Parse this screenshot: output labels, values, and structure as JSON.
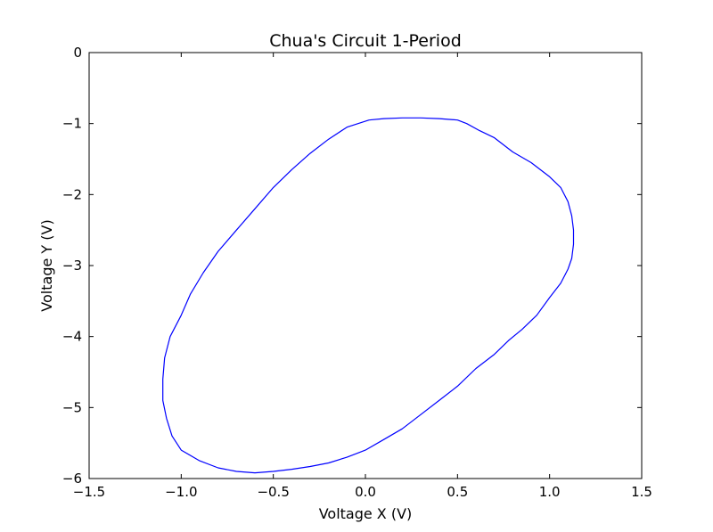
{
  "chart_data": {
    "type": "line",
    "title": "Chua's Circuit 1-Period",
    "xlabel": "Voltage X (V)",
    "ylabel": "Voltage Y (V)",
    "xlim": [
      -1.5,
      1.5
    ],
    "ylim": [
      -6,
      0
    ],
    "x_ticks": [
      -1.5,
      -1.0,
      -0.5,
      0.0,
      0.5,
      1.0,
      1.5
    ],
    "x_tick_labels": [
      "−1.5",
      "−1.0",
      "−0.5",
      "0.0",
      "0.5",
      "1.0",
      "1.5"
    ],
    "y_ticks": [
      0,
      -1,
      -2,
      -3,
      -4,
      -5,
      -6
    ],
    "y_tick_labels": [
      "0",
      "−1",
      "−2",
      "−3",
      "−4",
      "−5",
      "−6"
    ],
    "grid": false,
    "line_color": "#0000ff",
    "series": [
      {
        "x": [
          0.02,
          0.1,
          0.2,
          0.3,
          0.4,
          0.5,
          0.55,
          0.62,
          0.7,
          0.8,
          0.9,
          1.0,
          1.06,
          1.1,
          1.12,
          1.13,
          1.13,
          1.12,
          1.1,
          1.06,
          1.0,
          0.93,
          0.85,
          0.78,
          0.7,
          0.6,
          0.5,
          0.4,
          0.3,
          0.2,
          0.1,
          0.0,
          -0.1,
          -0.2,
          -0.3,
          -0.4,
          -0.5,
          -0.6,
          -0.7,
          -0.8,
          -0.9,
          -1.0,
          -1.05,
          -1.08,
          -1.1,
          -1.1,
          -1.09,
          -1.06,
          -1.0,
          -0.95,
          -0.88,
          -0.8,
          -0.7,
          -0.6,
          -0.5,
          -0.4,
          -0.3,
          -0.2,
          -0.1,
          0.02
        ],
        "y": [
          -0.95,
          -0.93,
          -0.92,
          -0.92,
          -0.93,
          -0.95,
          -1.0,
          -1.1,
          -1.2,
          -1.4,
          -1.55,
          -1.75,
          -1.9,
          -2.1,
          -2.3,
          -2.5,
          -2.7,
          -2.9,
          -3.05,
          -3.25,
          -3.45,
          -3.7,
          -3.9,
          -4.05,
          -4.25,
          -4.45,
          -4.7,
          -4.9,
          -5.1,
          -5.3,
          -5.45,
          -5.6,
          -5.7,
          -5.78,
          -5.83,
          -5.87,
          -5.9,
          -5.92,
          -5.9,
          -5.85,
          -5.75,
          -5.6,
          -5.4,
          -5.15,
          -4.9,
          -4.6,
          -4.3,
          -4.0,
          -3.7,
          -3.4,
          -3.1,
          -2.8,
          -2.5,
          -2.2,
          -1.9,
          -1.65,
          -1.42,
          -1.22,
          -1.05,
          -0.95
        ]
      }
    ]
  }
}
